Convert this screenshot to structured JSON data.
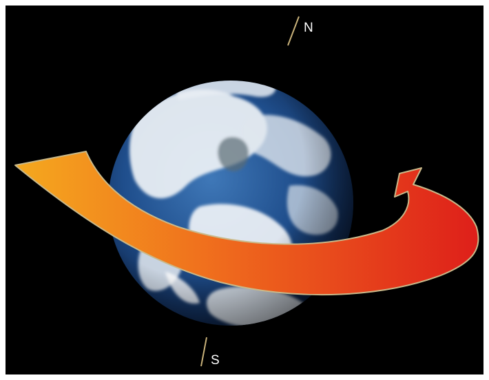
{
  "diagram": {
    "labels": {
      "north": "N",
      "south": "S"
    },
    "elements": [
      {
        "name": "earth-globe",
        "kind": "image",
        "description": ""
      },
      {
        "name": "rotation-arrow",
        "kind": "arrow"
      },
      {
        "name": "axis-line-north",
        "kind": "line"
      },
      {
        "name": "axis-line-south",
        "kind": "line"
      }
    ],
    "colors": {
      "background": "#000000",
      "ocean": "#1f4e8c",
      "clouds": "#f2f5f8",
      "arrow_start": "#f3a21c",
      "arrow_end": "#e0231b",
      "arrow_outline": "#c9b98a",
      "axis_line": "#c9b27a",
      "label_text": "#ffffff"
    }
  }
}
